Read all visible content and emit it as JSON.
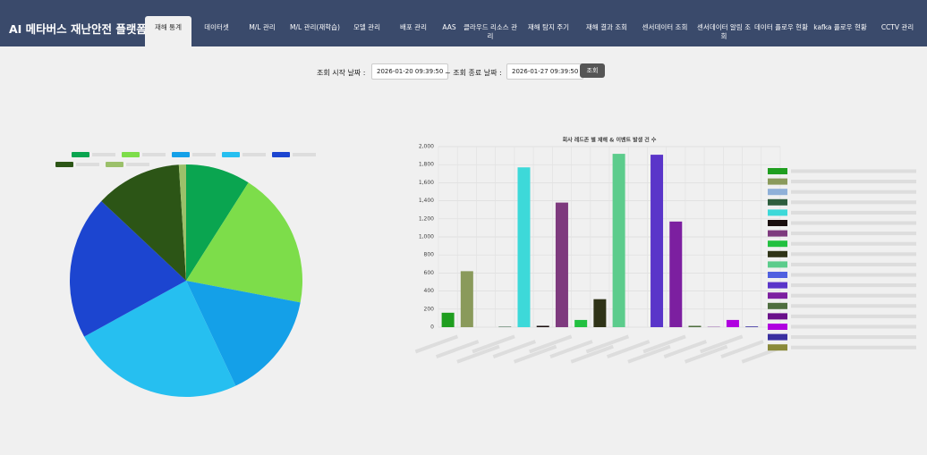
{
  "header": {
    "title": "AI 메타버스 재난안전 플랫폼"
  },
  "nav": [
    "재해 통계",
    "데이터셋",
    "M/L 관리",
    "M/L 관리(재학습)",
    "모델 관리",
    "배포 관리",
    "AAS",
    "클라우드 리소스 관리",
    "재해 탐지 주기",
    "재해 결과 조회",
    "센서데이터 조회",
    "센서데이터 알림 조회",
    "데이터 플로우 현황",
    "kafka 플로우 현황",
    "CCTV 관리"
  ],
  "query": {
    "start_label": "조회 시작 날짜 :",
    "start_value": "2026-01-20 09:39:50",
    "end_label": "~ 조회 종료 날짜 :",
    "end_value": "2026-01-27 09:39:50",
    "button": "조회"
  },
  "chart_data": [
    {
      "type": "pie",
      "categories": [
        null,
        null,
        null,
        null,
        null,
        null,
        null
      ],
      "values": [
        9,
        19,
        15,
        24,
        20,
        12,
        1
      ],
      "colors": [
        "#0aa550",
        "#7ddd4a",
        "#14a0e8",
        "#26bff0",
        "#1c45d0",
        "#2c5516",
        "#9bc06a"
      ]
    },
    {
      "type": "bar",
      "title": "회사 레드존 별 재해 & 이벤트 발생 건 수",
      "categories": [
        null,
        null,
        null,
        null,
        null,
        null,
        null,
        null,
        null,
        null,
        null,
        null,
        null,
        null,
        null,
        null,
        null,
        null
      ],
      "values": [
        160,
        620,
        0,
        5,
        1770,
        15,
        1380,
        80,
        310,
        1920,
        0,
        1910,
        1170,
        15,
        3,
        80,
        8,
        0
      ],
      "colors": [
        "#1f9e1f",
        "#8a9a5b",
        "#8fb0d8",
        "#2e5e3e",
        "#3dd9d9",
        "#1a0f0f",
        "#7e3a7e",
        "#22c040",
        "#2f3317",
        "#5ccc8c",
        "#5060e0",
        "#5a35c9",
        "#7c1fa0",
        "#4e6e3e",
        "#6a0f8a",
        "#b000e0",
        "#3a2fa0",
        "#8a8a3a"
      ],
      "ylim": [
        0,
        2000
      ],
      "yticks": [
        0,
        200,
        400,
        600,
        800,
        {
          "value": 1000,
          "label": "1,000"
        },
        {
          "value": 1200,
          "label": "1,200"
        },
        {
          "value": 1400,
          "label": "1,400"
        },
        {
          "value": 1600,
          "label": "1,600"
        },
        {
          "value": 1800,
          "label": "1,800"
        },
        {
          "value": 2000,
          "label": "2,000"
        }
      ],
      "grid": true
    }
  ]
}
